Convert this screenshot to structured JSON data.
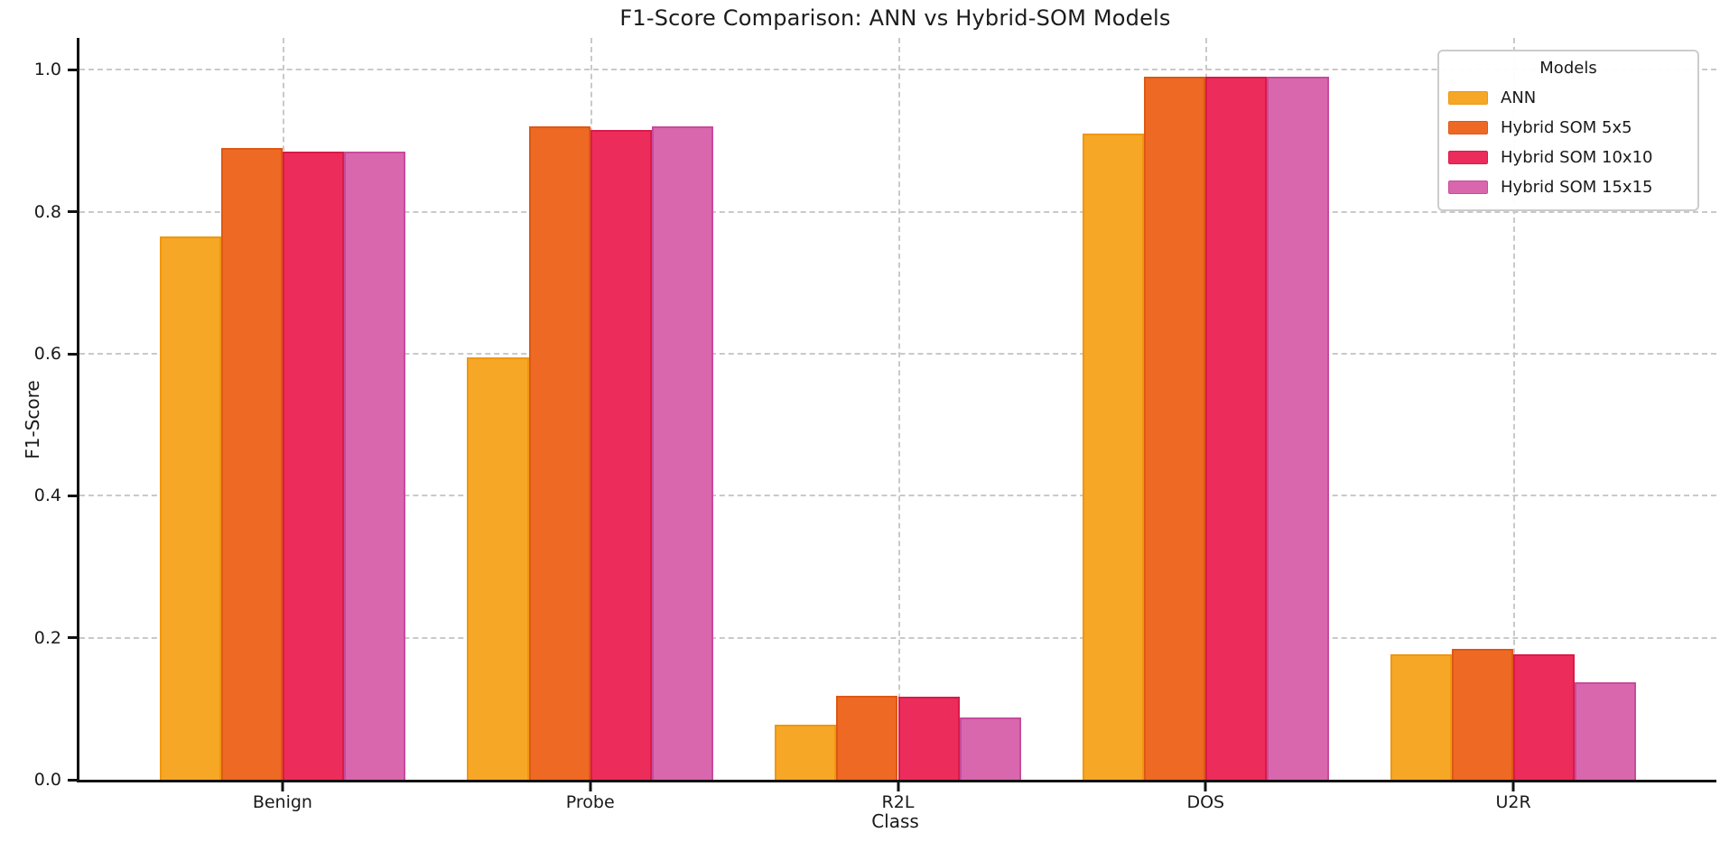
{
  "chart_data": {
    "type": "bar",
    "title": "F1-Score Comparison: ANN vs Hybrid-SOM Models",
    "xlabel": "Class",
    "ylabel": "F1-Score",
    "categories": [
      "Benign",
      "Probe",
      "R2L",
      "DOS",
      "U2R"
    ],
    "series": [
      {
        "name": "ANN",
        "color": "#F7A726",
        "edge": "#EF9711",
        "values": [
          0.765,
          0.595,
          0.078,
          0.91,
          0.177
        ]
      },
      {
        "name": "Hybrid SOM 5x5",
        "color": "#EE6A24",
        "edge": "#DE5813",
        "values": [
          0.89,
          0.92,
          0.118,
          0.99,
          0.184
        ]
      },
      {
        "name": "Hybrid SOM 10x10",
        "color": "#EC2D5B",
        "edge": "#DA1A49",
        "values": [
          0.885,
          0.915,
          0.117,
          0.99,
          0.177
        ]
      },
      {
        "name": "Hybrid SOM 15x15",
        "color": "#D967AE",
        "edge": "#C74B9B",
        "values": [
          0.885,
          0.92,
          0.088,
          0.99,
          0.137
        ]
      }
    ],
    "yticks": [
      0.0,
      0.2,
      0.4,
      0.6,
      0.8,
      1.0
    ],
    "ylim": [
      0,
      1.045
    ],
    "xlim": [
      -0.66,
      4.66
    ],
    "bar_width": 0.2,
    "grid": "dashed horizontal at yticks, dashed vertical at category centers",
    "legend": {
      "title": "Models",
      "position": "upper right"
    }
  }
}
